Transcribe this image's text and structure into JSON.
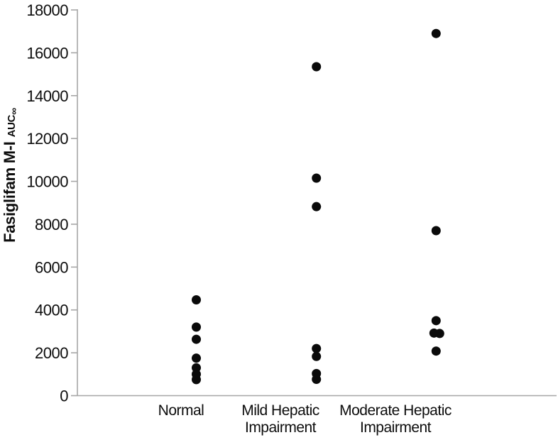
{
  "figure": {
    "background_color": "#ffffff",
    "axis_color": "#a6a6a6",
    "dot_color": "#0a0a0a",
    "text_color": "#0d0d0d"
  },
  "chart_data": {
    "type": "scatter",
    "subtype": "strip-plot",
    "title": "",
    "ylabel_main": "Fasiglifam M-I",
    "ylabel_sub": "AUC",
    "ylabel_subscript": "∞",
    "ylim": [
      0,
      18000
    ],
    "ytick_interval": 2000,
    "yticks": [
      0,
      2000,
      4000,
      6000,
      8000,
      10000,
      12000,
      14000,
      16000,
      18000
    ],
    "grid": false,
    "legend": false,
    "categories": [
      {
        "label": "Normal",
        "lines": [
          "Normal"
        ]
      },
      {
        "label": "Mild Hepatic Impairment",
        "lines": [
          "Mild Hepatic",
          "Impairment"
        ]
      },
      {
        "label": "Moderate Hepatic Impairment",
        "lines": [
          "Moderate Hepatic",
          "Impairment"
        ]
      }
    ],
    "series": [
      {
        "name": "Normal",
        "values": [
          4470,
          3200,
          2630,
          1750,
          1300,
          1000,
          750
        ]
      },
      {
        "name": "Mild Hepatic Impairment",
        "values": [
          15350,
          10150,
          8820,
          2200,
          1830,
          1030,
          760
        ]
      },
      {
        "name": "Moderate Hepatic Impairment",
        "values": [
          16900,
          7700,
          3500,
          2920,
          2900,
          2080
        ]
      }
    ]
  }
}
